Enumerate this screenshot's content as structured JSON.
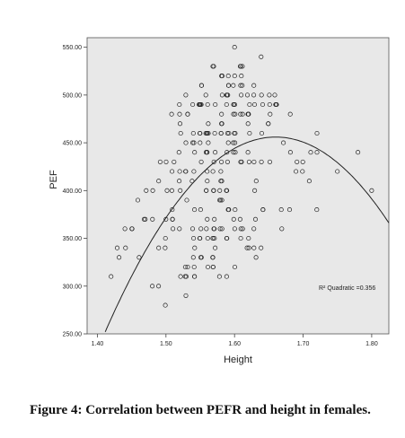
{
  "caption": "Figure 4: Correlation between PEFR and height in females.",
  "chart_data": {
    "type": "scatter",
    "xlabel": "Height",
    "ylabel": "PEF",
    "xlim": [
      1.385,
      1.825
    ],
    "ylim": [
      250,
      560
    ],
    "x_ticks": [
      "1.40",
      "1.50",
      "1.60",
      "1.70",
      "1.80"
    ],
    "y_ticks": [
      "250.00",
      "300.00",
      "350.00",
      "400.00",
      "450.00",
      "500.00",
      "550.00"
    ],
    "grid": false,
    "fit": {
      "type": "quadratic",
      "label": "R² Quadratic =0.356",
      "peak_x": 1.66,
      "peak_y": 456,
      "curvature": -3300
    },
    "point_range": {
      "x": [
        1.42,
        1.8
      ],
      "y": [
        275,
        550
      ]
    },
    "colors": {
      "background": "#e8e8e8",
      "marker": "#222222",
      "fit_line": "#222222"
    }
  }
}
